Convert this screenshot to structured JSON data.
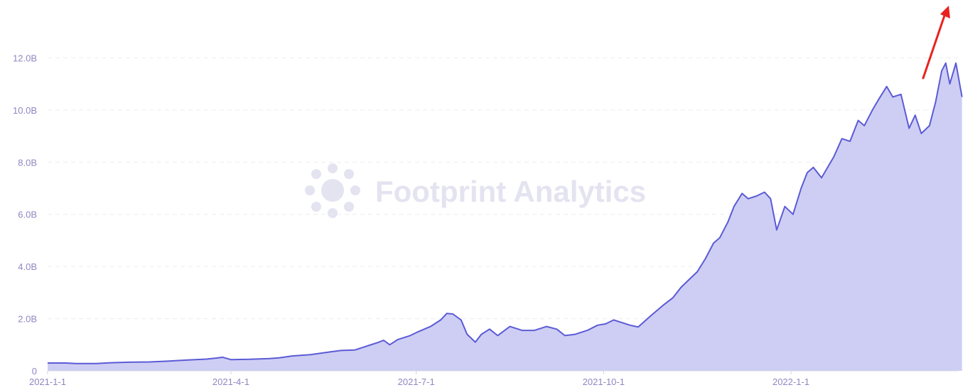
{
  "chart_data": {
    "type": "area",
    "title": "",
    "xlabel": "",
    "ylabel": "",
    "x_start": "2021-01-01",
    "x_end": "2022-03-24",
    "ylim": [
      0,
      14000000000
    ],
    "y_ticks": [
      0,
      2000000000,
      4000000000,
      6000000000,
      8000000000,
      10000000000,
      12000000000
    ],
    "y_tick_labels": [
      "0",
      "2.0B",
      "4.0B",
      "6.0B",
      "8.0B",
      "10.0B",
      "12.0B"
    ],
    "x_ticks": [
      "2021-01-01",
      "2021-04-01",
      "2021-07-01",
      "2021-10-01",
      "2022-01-01"
    ],
    "x_tick_labels": [
      "2021-1-1",
      "2021-4-1",
      "2021-7-1",
      "2021-10-1",
      "2022-1-1"
    ],
    "grid": true,
    "line_color": "#5b5bd6",
    "fill_color": "#cecef4",
    "arrow_color": "#e8231f",
    "watermark_text": "Footprint Analytics",
    "series": [
      {
        "name": "",
        "points": [
          [
            "2021-01-01",
            0.3
          ],
          [
            "2021-01-10",
            0.3
          ],
          [
            "2021-01-15",
            0.28
          ],
          [
            "2021-01-25",
            0.28
          ],
          [
            "2021-02-01",
            0.31
          ],
          [
            "2021-02-10",
            0.33
          ],
          [
            "2021-02-20",
            0.34
          ],
          [
            "2021-03-01",
            0.37
          ],
          [
            "2021-03-10",
            0.41
          ],
          [
            "2021-03-20",
            0.45
          ],
          [
            "2021-03-25",
            0.49
          ],
          [
            "2021-03-28",
            0.52
          ],
          [
            "2021-04-01",
            0.43
          ],
          [
            "2021-04-10",
            0.44
          ],
          [
            "2021-04-20",
            0.47
          ],
          [
            "2021-04-25",
            0.5
          ],
          [
            "2021-05-01",
            0.57
          ],
          [
            "2021-05-10",
            0.62
          ],
          [
            "2021-05-20",
            0.73
          ],
          [
            "2021-05-25",
            0.78
          ],
          [
            "2021-06-01",
            0.8
          ],
          [
            "2021-06-08",
            0.98
          ],
          [
            "2021-06-12",
            1.08
          ],
          [
            "2021-06-15",
            1.17
          ],
          [
            "2021-06-18",
            1.0
          ],
          [
            "2021-06-22",
            1.2
          ],
          [
            "2021-06-28",
            1.35
          ],
          [
            "2021-07-02",
            1.5
          ],
          [
            "2021-07-08",
            1.7
          ],
          [
            "2021-07-13",
            1.95
          ],
          [
            "2021-07-16",
            2.2
          ],
          [
            "2021-07-19",
            2.18
          ],
          [
            "2021-07-23",
            1.95
          ],
          [
            "2021-07-26",
            1.4
          ],
          [
            "2021-07-28",
            1.25
          ],
          [
            "2021-07-30",
            1.1
          ],
          [
            "2021-08-02",
            1.4
          ],
          [
            "2021-08-06",
            1.6
          ],
          [
            "2021-08-10",
            1.35
          ],
          [
            "2021-08-16",
            1.7
          ],
          [
            "2021-08-22",
            1.55
          ],
          [
            "2021-08-28",
            1.55
          ],
          [
            "2021-09-03",
            1.7
          ],
          [
            "2021-09-08",
            1.6
          ],
          [
            "2021-09-12",
            1.35
          ],
          [
            "2021-09-17",
            1.4
          ],
          [
            "2021-09-23",
            1.55
          ],
          [
            "2021-09-28",
            1.75
          ],
          [
            "2021-10-02",
            1.8
          ],
          [
            "2021-10-06",
            1.95
          ],
          [
            "2021-10-10",
            1.85
          ],
          [
            "2021-10-14",
            1.75
          ],
          [
            "2021-10-18",
            1.68
          ],
          [
            "2021-10-24",
            2.1
          ],
          [
            "2021-10-30",
            2.5
          ],
          [
            "2021-11-04",
            2.8
          ],
          [
            "2021-11-08",
            3.2
          ],
          [
            "2021-11-12",
            3.5
          ],
          [
            "2021-11-16",
            3.8
          ],
          [
            "2021-11-20",
            4.3
          ],
          [
            "2021-11-24",
            4.9
          ],
          [
            "2021-11-27",
            5.1
          ],
          [
            "2021-12-01",
            5.7
          ],
          [
            "2021-12-04",
            6.3
          ],
          [
            "2021-12-08",
            6.8
          ],
          [
            "2021-12-11",
            6.6
          ],
          [
            "2021-12-15",
            6.7
          ],
          [
            "2021-12-19",
            6.85
          ],
          [
            "2021-12-22",
            6.6
          ],
          [
            "2021-12-25",
            5.4
          ],
          [
            "2021-12-29",
            6.3
          ],
          [
            "2022-01-02",
            6.0
          ],
          [
            "2022-01-06",
            7.0
          ],
          [
            "2022-01-09",
            7.6
          ],
          [
            "2022-01-12",
            7.8
          ],
          [
            "2022-01-16",
            7.4
          ],
          [
            "2022-01-22",
            8.2
          ],
          [
            "2022-01-26",
            8.9
          ],
          [
            "2022-01-30",
            8.8
          ],
          [
            "2022-02-03",
            9.6
          ],
          [
            "2022-02-06",
            9.4
          ],
          [
            "2022-02-10",
            10.0
          ],
          [
            "2022-02-13",
            10.4
          ],
          [
            "2022-02-17",
            10.9
          ],
          [
            "2022-02-20",
            10.5
          ],
          [
            "2022-02-24",
            10.6
          ],
          [
            "2022-02-28",
            9.3
          ],
          [
            "2022-03-03",
            9.8
          ],
          [
            "2022-03-06",
            9.1
          ],
          [
            "2022-03-10",
            9.4
          ],
          [
            "2022-03-13",
            10.3
          ],
          [
            "2022-03-16",
            11.5
          ],
          [
            "2022-03-18",
            11.8
          ],
          [
            "2022-03-20",
            11.0
          ],
          [
            "2022-03-23",
            11.8
          ],
          [
            "2022-03-26",
            10.5
          ]
        ]
      }
    ]
  }
}
